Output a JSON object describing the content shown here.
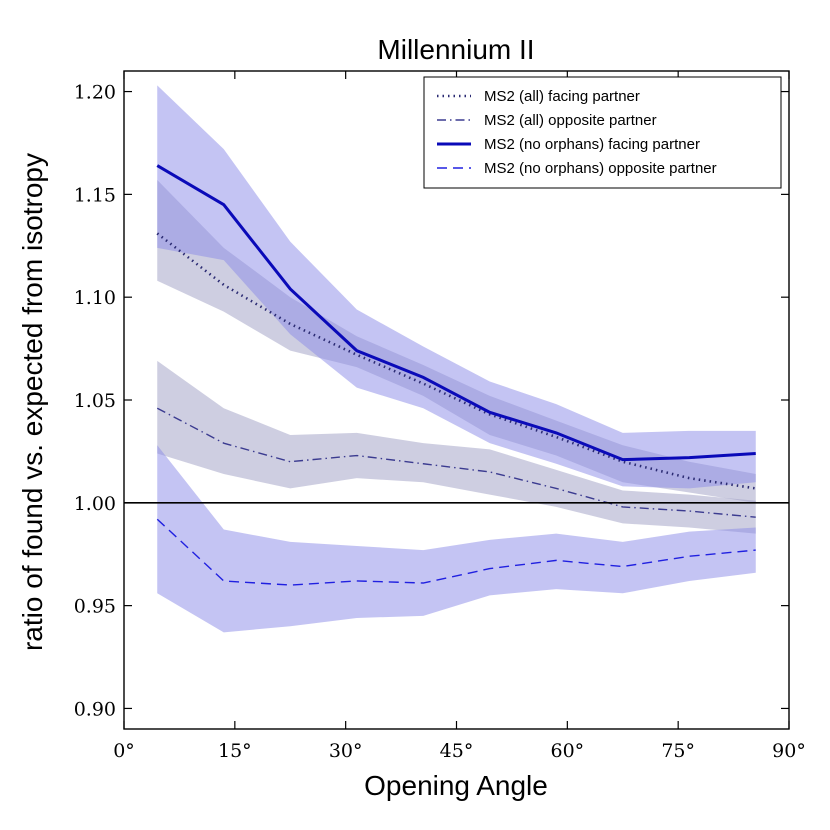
{
  "chart_data": {
    "type": "line",
    "title": "Millennium II",
    "xlabel": "Opening Angle",
    "ylabel": "ratio of found vs. expected from isotropy",
    "xlim": [
      0,
      90
    ],
    "ylim": [
      0.89,
      1.21
    ],
    "xticks": [
      0,
      15,
      30,
      45,
      60,
      75,
      90
    ],
    "xtick_labels": [
      "0°",
      "15°",
      "30°",
      "45°",
      "60°",
      "75°",
      "90°"
    ],
    "yticks": [
      0.9,
      0.95,
      1.0,
      1.05,
      1.1,
      1.15,
      1.2
    ],
    "ytick_labels": [
      "0.90",
      "0.95",
      "1.00",
      "1.05",
      "1.10",
      "1.15",
      "1.20"
    ],
    "reference_line": 1.0,
    "x": [
      4.5,
      13.5,
      22.5,
      31.5,
      40.5,
      49.5,
      58.5,
      67.5,
      76.5,
      85.5
    ],
    "series": [
      {
        "name": "MS2 (all) facing partner",
        "style": "dotted",
        "color": "#2b2b73",
        "band_color": "#9e9ec4",
        "values": [
          1.131,
          1.106,
          1.087,
          1.072,
          1.058,
          1.043,
          1.032,
          1.02,
          1.012,
          1.007
        ],
        "lower": [
          1.108,
          1.093,
          1.074,
          1.066,
          1.052,
          1.033,
          1.023,
          1.01,
          1.005,
          1.0
        ],
        "upper": [
          1.157,
          1.124,
          1.1,
          1.081,
          1.067,
          1.052,
          1.04,
          1.028,
          1.02,
          1.014
        ]
      },
      {
        "name": "MS2 (all) opposite partner",
        "style": "dashdot",
        "color": "#3b3b90",
        "band_color": "#9e9ec4",
        "values": [
          1.046,
          1.029,
          1.02,
          1.023,
          1.019,
          1.015,
          1.007,
          0.998,
          0.996,
          0.993
        ],
        "lower": [
          1.024,
          1.014,
          1.007,
          1.012,
          1.01,
          1.004,
          0.998,
          0.99,
          0.988,
          0.985
        ],
        "upper": [
          1.069,
          1.046,
          1.033,
          1.034,
          1.029,
          1.026,
          1.016,
          1.006,
          1.004,
          1.001
        ]
      },
      {
        "name": "MS2 (no orphans) facing partner",
        "style": "solid",
        "color": "#0a0ab8",
        "band_color": "#8a8ae8",
        "values": [
          1.164,
          1.145,
          1.104,
          1.074,
          1.061,
          1.044,
          1.034,
          1.021,
          1.022,
          1.024
        ],
        "lower": [
          1.124,
          1.118,
          1.082,
          1.056,
          1.046,
          1.029,
          1.019,
          1.008,
          1.007,
          1.01
        ],
        "upper": [
          1.203,
          1.172,
          1.127,
          1.094,
          1.076,
          1.059,
          1.048,
          1.034,
          1.035,
          1.035
        ]
      },
      {
        "name": "MS2 (no orphans) opposite partner",
        "style": "dashed",
        "color": "#2020e0",
        "band_color": "#8a8ae8",
        "values": [
          0.992,
          0.962,
          0.96,
          0.962,
          0.961,
          0.968,
          0.972,
          0.969,
          0.974,
          0.977
        ],
        "lower": [
          0.956,
          0.937,
          0.94,
          0.944,
          0.945,
          0.955,
          0.958,
          0.956,
          0.962,
          0.966
        ],
        "upper": [
          1.028,
          0.987,
          0.981,
          0.979,
          0.977,
          0.982,
          0.985,
          0.981,
          0.986,
          0.988
        ]
      }
    ],
    "legend_position": "top-right"
  }
}
